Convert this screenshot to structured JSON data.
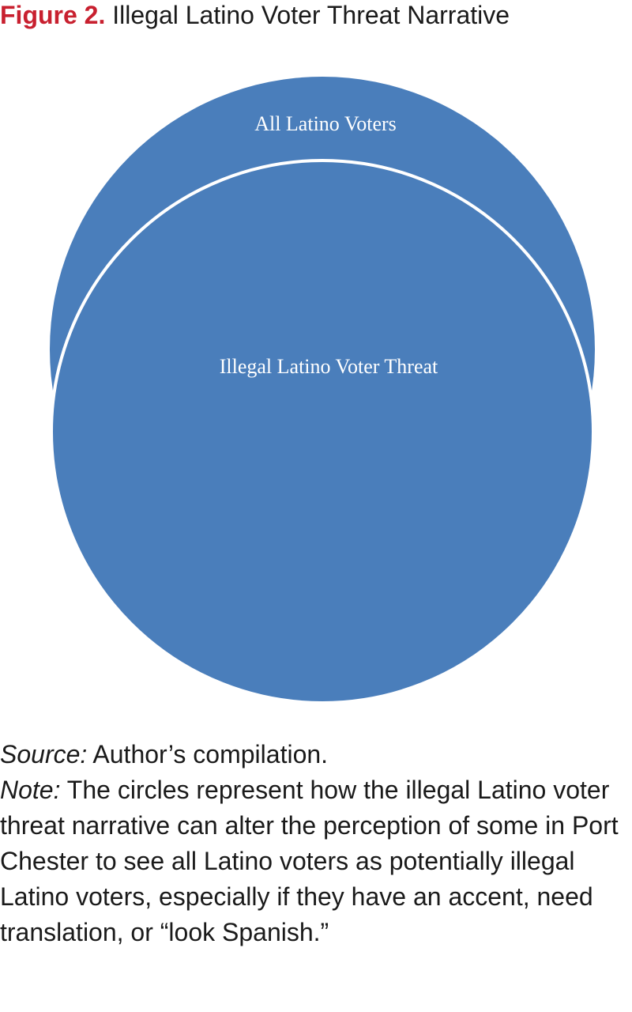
{
  "figure": {
    "label": "Figure 2.",
    "title": "Illegal Latino Voter Threat Narrative"
  },
  "diagram": {
    "outer_label": "All Latino Voters",
    "inner_label": "Illegal Latino Voter Threat",
    "circle_color": "#4a7ebb",
    "outline_color": "#ffffff"
  },
  "caption": {
    "source_label": "Source:",
    "source_text": "Author’s compilation.",
    "note_label": "Note:",
    "note_text": "The circles represent how the illegal Latino voter threat narrative can alter the perception of some in Port Chester to see all Latino voters as potentially illegal Latino voters, especially if they have an accent, need translation, or “look Span­ish.”"
  }
}
